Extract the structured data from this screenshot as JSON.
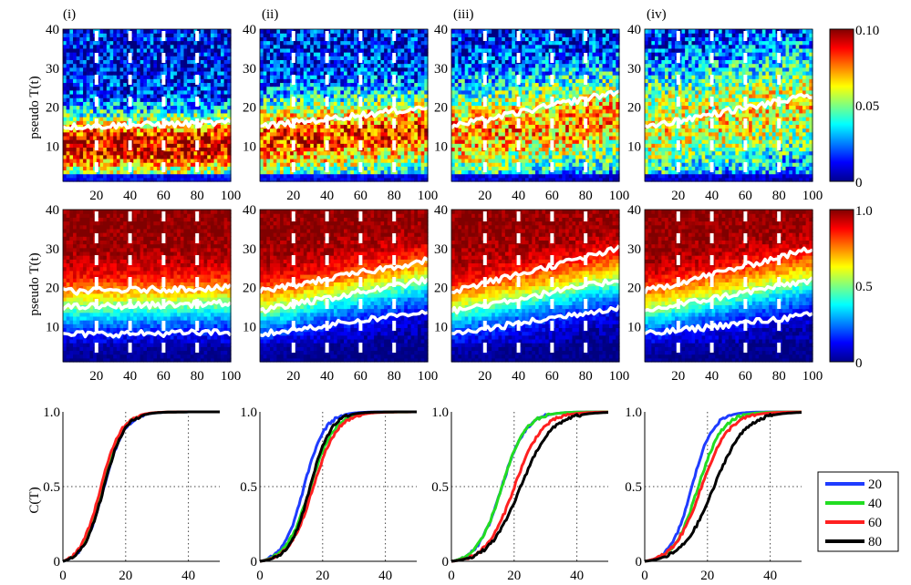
{
  "figure": {
    "panel_labels": [
      "(i)",
      "(ii)",
      "(iii)",
      "(iv)"
    ],
    "row1_ylabel": "pseudo T(t)",
    "row2_ylabel": "pseudo T(t)",
    "row3_ylabel": "C(T)"
  },
  "colors": {
    "series": [
      "#1f3cff",
      "#22dd22",
      "#ff2020",
      "#000000"
    ],
    "median_line": "#ffffff"
  },
  "chart_data": [
    {
      "type": "heatmap",
      "row": 1,
      "panels": [
        "(i)",
        "(ii)",
        "(iii)",
        "(iv)"
      ],
      "x_ticks": [
        "20",
        "40",
        "60",
        "80",
        "100"
      ],
      "y_ticks": [
        "10",
        "20",
        "30",
        "40"
      ],
      "xlim": [
        0,
        100
      ],
      "ylim": [
        1,
        40
      ],
      "colorbar": {
        "ticks": [
          "0",
          "0.05",
          "0.10"
        ],
        "range": [
          0,
          0.1
        ]
      },
      "colormap": "jet",
      "dashed_markers_x": [
        20,
        40,
        60,
        80
      ],
      "white_trend_line": [
        {
          "start": 15,
          "end": 16
        },
        {
          "start": 15,
          "end": 20
        },
        {
          "start": 15,
          "end": 24
        },
        {
          "start": 15,
          "end": 23
        }
      ]
    },
    {
      "type": "heatmap",
      "row": 2,
      "x_ticks": [
        "20",
        "40",
        "60",
        "80",
        "100"
      ],
      "y_ticks": [
        "10",
        "20",
        "30",
        "40"
      ],
      "xlim": [
        0,
        100
      ],
      "ylim": [
        1,
        40
      ],
      "colorbar": {
        "ticks": [
          "0",
          "0.5",
          "1.0"
        ],
        "range": [
          0,
          1.0
        ]
      },
      "colormap": "jet",
      "dashed_markers_x": [
        20,
        40,
        60,
        80
      ],
      "white_contours": [
        {
          "lower": [
            8,
            8.5
          ],
          "middle": [
            15,
            16
          ],
          "upper": [
            19,
            20
          ]
        },
        {
          "lower": [
            8,
            14
          ],
          "middle": [
            14,
            22
          ],
          "upper": [
            19,
            27
          ]
        },
        {
          "lower": [
            8,
            15
          ],
          "middle": [
            14,
            22
          ],
          "upper": [
            19,
            30
          ]
        },
        {
          "lower": [
            8,
            13
          ],
          "middle": [
            14,
            22
          ],
          "upper": [
            19,
            30
          ]
        }
      ]
    },
    {
      "type": "line",
      "row": 3,
      "x_ticks": [
        "0",
        "20",
        "40"
      ],
      "y_ticks": [
        "0",
        "0.5",
        "1.0"
      ],
      "xlim": [
        0,
        50
      ],
      "ylim": [
        0,
        1
      ],
      "grid": "dotted at x=20,40 and y=0.5",
      "legend": {
        "position": "right",
        "entries": [
          "20",
          "40",
          "60",
          "80"
        ]
      },
      "panels": [
        {
          "series": [
            {
              "name": "20",
              "mid": 13,
              "spread": 6
            },
            {
              "name": "40",
              "mid": 12.5,
              "spread": 6
            },
            {
              "name": "60",
              "mid": 12,
              "spread": 6
            },
            {
              "name": "80",
              "mid": 13,
              "spread": 6
            }
          ]
        },
        {
          "series": [
            {
              "name": "20",
              "mid": 14,
              "spread": 6
            },
            {
              "name": "40",
              "mid": 16,
              "spread": 7
            },
            {
              "name": "60",
              "mid": 17,
              "spread": 7
            },
            {
              "name": "80",
              "mid": 16,
              "spread": 6
            }
          ]
        },
        {
          "series": [
            {
              "name": "20",
              "mid": 16,
              "spread": 7
            },
            {
              "name": "40",
              "mid": 16,
              "spread": 7
            },
            {
              "name": "60",
              "mid": 20,
              "spread": 8
            },
            {
              "name": "80",
              "mid": 22,
              "spread": 9
            }
          ]
        },
        {
          "series": [
            {
              "name": "20",
              "mid": 15,
              "spread": 6
            },
            {
              "name": "40",
              "mid": 17,
              "spread": 7
            },
            {
              "name": "60",
              "mid": 18,
              "spread": 8
            },
            {
              "name": "80",
              "mid": 22,
              "spread": 9
            }
          ]
        }
      ]
    }
  ]
}
